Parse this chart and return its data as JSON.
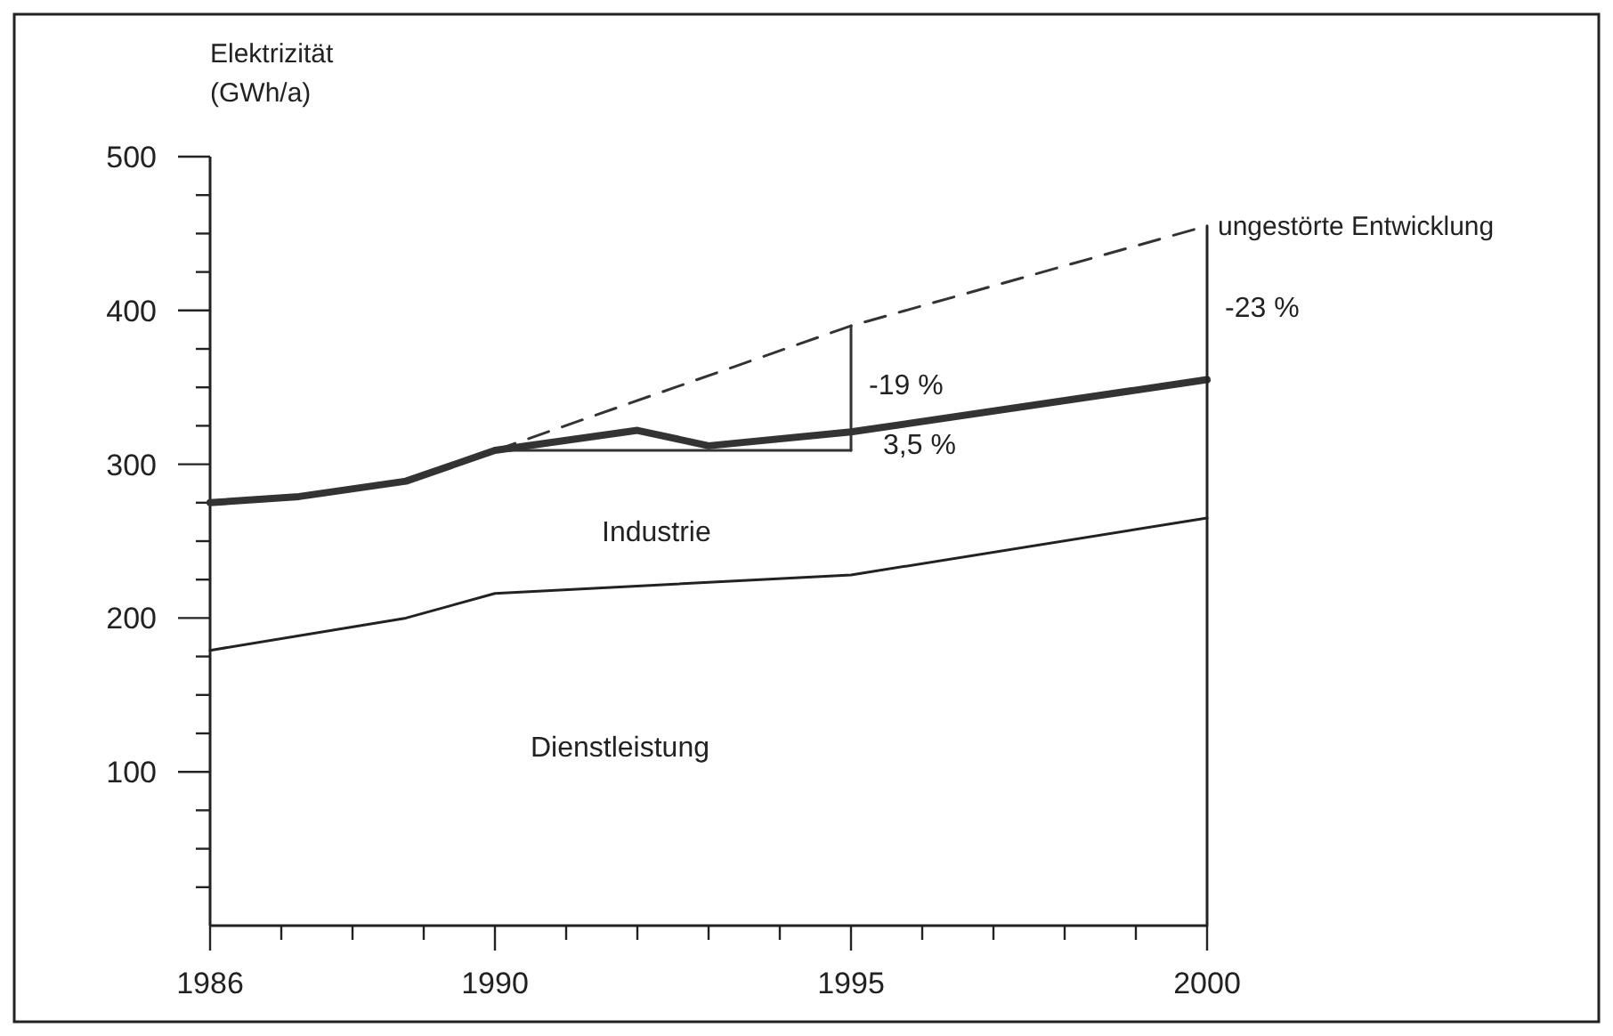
{
  "chart_data": {
    "type": "line",
    "ylabel": "Elektrizität\n(GWh/a)",
    "xlim": [
      1986,
      2000
    ],
    "xticks": [
      1986,
      {
        "value": 1987,
        "label": null
      },
      {
        "value": 1988,
        "label": null
      },
      {
        "value": 1989,
        "label": null
      },
      1990,
      {
        "value": 1991,
        "label": null
      },
      {
        "value": 1992,
        "label": null
      },
      {
        "value": 1993,
        "label": null
      },
      {
        "value": 1994,
        "label": null
      },
      1995,
      {
        "value": 1996,
        "label": null
      },
      {
        "value": 1997,
        "label": null
      },
      {
        "value": 1998,
        "label": null
      },
      {
        "value": 1999,
        "label": null
      },
      2000
    ],
    "ylim": [
      0,
      500
    ],
    "yticks": [
      {
        "value": 25,
        "label": null
      },
      {
        "value": 50,
        "label": null
      },
      {
        "value": 75,
        "label": null
      },
      100,
      {
        "value": 125,
        "label": null
      },
      {
        "value": 150,
        "label": null
      },
      {
        "value": 175,
        "label": null
      },
      200,
      {
        "value": 225,
        "label": null
      },
      {
        "value": 250,
        "label": null
      },
      {
        "value": 275,
        "label": null
      },
      300,
      {
        "value": 325,
        "label": null
      },
      {
        "value": 350,
        "label": null
      },
      {
        "value": 375,
        "label": null
      },
      400,
      {
        "value": 425,
        "label": null
      },
      {
        "value": 450,
        "label": null
      },
      {
        "value": 475,
        "label": null
      },
      500
    ],
    "grid": false,
    "marker": "none",
    "series": [
      {
        "color": "#333333",
        "x": [
          1986,
          1987.25,
          1988.75,
          1990,
          1992,
          1993,
          1995,
          2000
        ],
        "values": [
          275,
          279,
          289,
          309,
          322,
          312,
          321,
          355
        ]
      },
      {
        "color": "#222222",
        "x": [
          1986,
          1988.75,
          1990,
          1995,
          2000
        ],
        "values": [
          179,
          200,
          216,
          228,
          265
        ]
      },
      {
        "name": "ungestörte Entwicklung",
        "color": "#333333",
        "line_style": "dashed",
        "x": [
          1990,
          1995,
          2000
        ],
        "values": [
          309,
          390,
          455
        ]
      },
      {
        "color": "#333333",
        "x": [
          1990,
          1995
        ],
        "values": [
          309,
          309
        ]
      },
      {
        "color": "#333333",
        "x": [
          1995,
          1995
        ],
        "values": [
          309,
          390
        ]
      },
      {
        "color": "#222222",
        "x": [
          2000,
          2000
        ],
        "values": [
          0,
          455
        ]
      }
    ],
    "annotations": [
      "-19 %",
      "3,5 %",
      "-23 %",
      "Industrie",
      "Dienstleistung"
    ]
  }
}
